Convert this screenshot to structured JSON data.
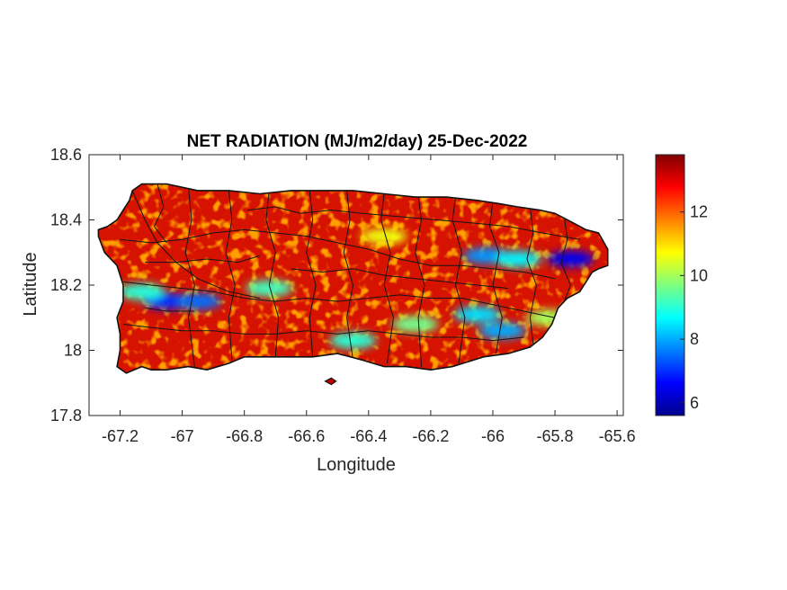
{
  "chart_data": {
    "type": "heatmap",
    "title": "NET RADIATION (MJ/m2/day) 25-Dec-2022",
    "xlabel": "Longitude",
    "ylabel": "Latitude",
    "xlim": [
      -67.3,
      -65.58
    ],
    "ylim": [
      17.8,
      18.6
    ],
    "xticks": [
      {
        "value": -67.2,
        "label": "-67.2"
      },
      {
        "value": -67.0,
        "label": "-67"
      },
      {
        "value": -66.8,
        "label": "-66.8"
      },
      {
        "value": -66.6,
        "label": "-66.6"
      },
      {
        "value": -66.4,
        "label": "-66.4"
      },
      {
        "value": -66.2,
        "label": "-66.2"
      },
      {
        "value": -66.0,
        "label": "-66"
      },
      {
        "value": -65.8,
        "label": "-65.8"
      },
      {
        "value": -65.6,
        "label": "-65.6"
      }
    ],
    "yticks": [
      {
        "value": 17.8,
        "label": "17.8"
      },
      {
        "value": 18.0,
        "label": "18"
      },
      {
        "value": 18.2,
        "label": "18.2"
      },
      {
        "value": 18.4,
        "label": "18.4"
      },
      {
        "value": 18.6,
        "label": "18.6"
      }
    ],
    "colorbar": {
      "colormap": "jet",
      "range": [
        5.6,
        13.8
      ],
      "ticks": [
        {
          "value": 6,
          "label": "6"
        },
        {
          "value": 8,
          "label": "8"
        },
        {
          "value": 10,
          "label": "10"
        },
        {
          "value": 12,
          "label": "12"
        }
      ]
    },
    "typical_value": 13.2,
    "low_value_zones": [
      {
        "lon": -67.05,
        "lat": 18.15,
        "value": 6.8
      },
      {
        "lon": -66.95,
        "lat": 18.15,
        "value": 7.5
      },
      {
        "lon": -67.13,
        "lat": 18.18,
        "value": 9.0
      },
      {
        "lon": -66.72,
        "lat": 18.19,
        "value": 9.2
      },
      {
        "lon": -66.02,
        "lat": 18.29,
        "value": 7.8
      },
      {
        "lon": -65.92,
        "lat": 18.28,
        "value": 8.6
      },
      {
        "lon": -65.75,
        "lat": 18.28,
        "value": 6.5
      },
      {
        "lon": -66.05,
        "lat": 18.11,
        "value": 8.4
      },
      {
        "lon": -65.97,
        "lat": 18.06,
        "value": 8.0
      },
      {
        "lon": -66.45,
        "lat": 18.03,
        "value": 9.0
      },
      {
        "lon": -66.25,
        "lat": 18.08,
        "value": 9.6
      },
      {
        "lon": -66.35,
        "lat": 18.35,
        "value": 10.6
      },
      {
        "lon": -65.82,
        "lat": 18.1,
        "value": 10.0
      }
    ],
    "grid": false,
    "legend": "colorbar-right"
  }
}
